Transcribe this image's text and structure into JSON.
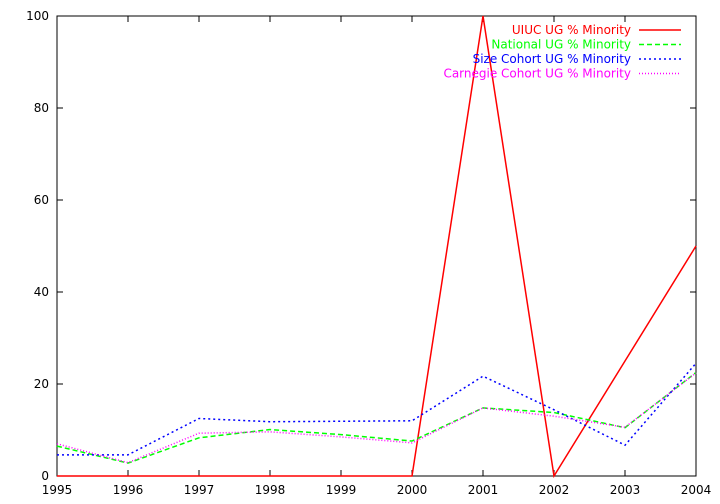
{
  "chart_data": {
    "type": "line",
    "title": "",
    "xlabel": "",
    "ylabel": "",
    "x": [
      1995,
      1996,
      1997,
      1998,
      1999,
      2000,
      2001,
      2002,
      2003,
      2004
    ],
    "xlim": [
      1995,
      2004
    ],
    "ylim": [
      0,
      100
    ],
    "x_ticks": [
      "1995",
      "1996",
      "1997",
      "1998",
      "1999",
      "2000",
      "2001",
      "2002",
      "2003",
      "2004"
    ],
    "y_ticks": [
      "0",
      "20",
      "40",
      "60",
      "80",
      "100"
    ],
    "grid": false,
    "legend_position": "top-right",
    "series": [
      {
        "name": "UIUC UG % Minority",
        "color": "#ff0000",
        "dash": "solid",
        "values": [
          0,
          0,
          0,
          0,
          0,
          0,
          100,
          0,
          25,
          50
        ]
      },
      {
        "name": "National UG % Minority",
        "color": "#00ff00",
        "dash": "dashed",
        "values": [
          6.5,
          2.8,
          8.3,
          10.1,
          9.0,
          7.6,
          14.8,
          13.8,
          10.5,
          22.5
        ]
      },
      {
        "name": "Size Cohort UG % Minority",
        "color": "#0000ff",
        "dash": "dotted",
        "values": [
          4.6,
          4.6,
          12.5,
          11.8,
          11.9,
          12.0,
          21.7,
          14.4,
          6.7,
          24.5
        ]
      },
      {
        "name": "Carnegie Cohort UG % Minority",
        "color": "#ff00ff",
        "dash": "fine-dotted",
        "values": [
          7.0,
          2.9,
          9.3,
          9.6,
          8.5,
          7.2,
          14.8,
          13.0,
          10.6,
          22.4
        ]
      }
    ]
  }
}
